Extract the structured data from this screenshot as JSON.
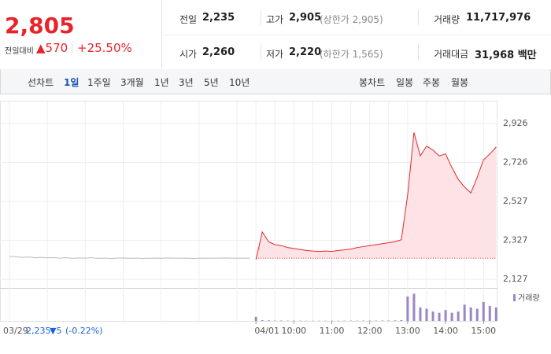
{
  "header": {
    "price": "2,805",
    "change_label": "전일대비",
    "change": "▲570",
    "change_pct": "+25.50%"
  },
  "stats": [
    {
      "label": "전일",
      "value": "2,235"
    },
    {
      "label": "고가",
      "value": "2,905",
      "note": "(상한가 2,905)"
    },
    {
      "label": "거래량",
      "value": "11,717,976"
    },
    {
      "label": "시가",
      "value": "2,260"
    },
    {
      "label": "저가",
      "value": "2,220",
      "note": "(하한가 1,565)"
    },
    {
      "label": "거래대금",
      "value": "31,968 백만"
    }
  ],
  "tabs": {
    "line_label": "선차트",
    "line_periods": [
      "1일",
      "1주일",
      "3개월",
      "1년",
      "3년",
      "5년",
      "10년"
    ],
    "candle_label": "봉차트",
    "candle_periods": [
      "일봉",
      "주봉",
      "월봉"
    ]
  },
  "chart_data": [
    {
      "type": "line",
      "categories": [
        null,
        null,
        null,
        null,
        null,
        null,
        null,
        null,
        null,
        null,
        null,
        null,
        null,
        null,
        null,
        null,
        null,
        null,
        null,
        null,
        null,
        null,
        null,
        null,
        null,
        null,
        null,
        null,
        null,
        null,
        null,
        null,
        null,
        null,
        null,
        null,
        null,
        null,
        null,
        "04/01",
        null,
        null,
        null,
        null,
        null,
        "10:00",
        null,
        null,
        null,
        null,
        null,
        "11:00",
        null,
        null,
        null,
        null,
        null,
        "12:00",
        null,
        null,
        null,
        null,
        null,
        "13:00",
        null,
        null,
        null,
        null,
        null,
        "14:00",
        null,
        null,
        null,
        null,
        null,
        "15:00",
        null,
        null
      ],
      "series": [
        {
          "color": "#bbbbbb",
          "values": [
            2245,
            2243,
            2240,
            2242,
            2238,
            2240,
            2237,
            2239,
            2236,
            2238,
            2235,
            2237,
            2236,
            2238,
            2235,
            2236,
            2234,
            2236,
            2237,
            2235,
            2236,
            2234,
            2235,
            2236,
            2235,
            2237,
            2236,
            2235,
            2236,
            2234,
            2235,
            2236,
            2235,
            2236,
            2237,
            2236,
            2235,
            2236,
            2235,
            null,
            null,
            null,
            null,
            null,
            null,
            null,
            null,
            null,
            null,
            null,
            null,
            null,
            null,
            null,
            null,
            null,
            null,
            null,
            null,
            null,
            null,
            null,
            null,
            null,
            null,
            null,
            null,
            null,
            null,
            null,
            null,
            null,
            null,
            null,
            null,
            null,
            null,
            null
          ]
        },
        {
          "color": "#e8242b",
          "fill": "#fde3e5",
          "values": [
            null,
            null,
            null,
            null,
            null,
            null,
            null,
            null,
            null,
            null,
            null,
            null,
            null,
            null,
            null,
            null,
            null,
            null,
            null,
            null,
            null,
            null,
            null,
            null,
            null,
            null,
            null,
            null,
            null,
            null,
            null,
            null,
            null,
            null,
            null,
            null,
            null,
            null,
            null,
            2228,
            2370,
            2320,
            2305,
            2300,
            2290,
            2285,
            2280,
            2275,
            2272,
            2270,
            2272,
            2270,
            2275,
            2278,
            2282,
            2290,
            2295,
            2300,
            2305,
            2310,
            2315,
            2320,
            2330,
            2560,
            2880,
            2760,
            2810,
            2790,
            2760,
            2770,
            2700,
            2640,
            2600,
            2570,
            2650,
            2740,
            2770,
            2805
          ]
        }
      ],
      "baseline": 2235,
      "ylim": [
        2087,
        3035
      ],
      "yticks": [
        {
          "value": 2926,
          "label": "2,926"
        },
        {
          "value": 2726,
          "label": "2,726"
        },
        {
          "value": 2527,
          "label": "2,527"
        },
        {
          "value": 2327,
          "label": "2,327"
        },
        {
          "value": 2127,
          "label": "2,127"
        }
      ],
      "grid": true,
      "prev_info": {
        "date": "03/29",
        "close": "2,235",
        "change": "▼5",
        "pct": "(-0.22%)"
      }
    },
    {
      "type": "bar",
      "series": [
        {
          "name": "거래량",
          "color": "#9b86c4",
          "values": [
            150000,
            30000,
            20000,
            15000,
            15000,
            10000,
            10000,
            10000,
            8000,
            8000,
            8000,
            8000,
            8000,
            8000,
            10000,
            10000,
            10000,
            12000,
            12000,
            12000,
            15000,
            15000,
            20000,
            30000,
            900000,
            1000000,
            500000,
            450000,
            350000,
            300000,
            400000,
            300000,
            350000,
            600000,
            500000,
            450000,
            700000,
            550000,
            500000
          ]
        }
      ],
      "ylim": [
        0,
        1100000
      ]
    }
  ]
}
